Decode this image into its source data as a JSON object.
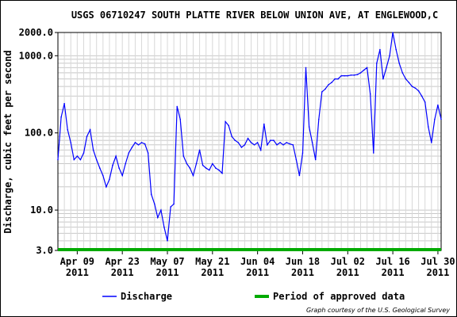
{
  "chart_data": {
    "type": "line",
    "title": "USGS 06710247 SOUTH PLATTE RIVER BELOW UNION AVE, AT ENGLEWOOD,C",
    "ylabel": "Discharge, cubic feet per second",
    "xlabel": "",
    "y_scale": "log",
    "ylim": [
      3,
      2000
    ],
    "xlim": [
      "2011-04-03",
      "2011-07-31"
    ],
    "grid": true,
    "y_ticks": [
      "2000.0",
      "1000.0",
      "100.0",
      "10.0",
      "3.0"
    ],
    "x_ticks": [
      {
        "date": "2011-04-09",
        "line1": "Apr 09",
        "line2": "2011"
      },
      {
        "date": "2011-04-23",
        "line1": "Apr 23",
        "line2": "2011"
      },
      {
        "date": "2011-05-07",
        "line1": "May 07",
        "line2": "2011"
      },
      {
        "date": "2011-05-21",
        "line1": "May 21",
        "line2": "2011"
      },
      {
        "date": "2011-06-04",
        "line1": "Jun 04",
        "line2": "2011"
      },
      {
        "date": "2011-06-18",
        "line1": "Jun 18",
        "line2": "2011"
      },
      {
        "date": "2011-07-02",
        "line1": "Jul 02",
        "line2": "2011"
      },
      {
        "date": "2011-07-16",
        "line1": "Jul 16",
        "line2": "2011"
      },
      {
        "date": "2011-07-30",
        "line1": "Jul 30",
        "line2": "2011"
      }
    ],
    "series": [
      {
        "name": "Discharge",
        "color": "#0000ff",
        "points": [
          [
            "2011-04-03",
            45
          ],
          [
            "2011-04-04",
            160
          ],
          [
            "2011-04-05",
            240
          ],
          [
            "2011-04-06",
            110
          ],
          [
            "2011-04-07",
            75
          ],
          [
            "2011-04-08",
            45
          ],
          [
            "2011-04-09",
            50
          ],
          [
            "2011-04-10",
            45
          ],
          [
            "2011-04-11",
            55
          ],
          [
            "2011-04-12",
            90
          ],
          [
            "2011-04-13",
            110
          ],
          [
            "2011-04-14",
            60
          ],
          [
            "2011-04-15",
            45
          ],
          [
            "2011-04-16",
            35
          ],
          [
            "2011-04-17",
            28
          ],
          [
            "2011-04-18",
            20
          ],
          [
            "2011-04-19",
            25
          ],
          [
            "2011-04-20",
            38
          ],
          [
            "2011-04-21",
            50
          ],
          [
            "2011-04-22",
            35
          ],
          [
            "2011-04-23",
            28
          ],
          [
            "2011-04-24",
            40
          ],
          [
            "2011-04-25",
            55
          ],
          [
            "2011-04-26",
            65
          ],
          [
            "2011-04-27",
            75
          ],
          [
            "2011-04-28",
            70
          ],
          [
            "2011-04-29",
            75
          ],
          [
            "2011-04-30",
            72
          ],
          [
            "2011-05-01",
            55
          ],
          [
            "2011-05-02",
            16
          ],
          [
            "2011-05-03",
            12
          ],
          [
            "2011-05-04",
            8
          ],
          [
            "2011-05-05",
            10
          ],
          [
            "2011-05-06",
            6
          ],
          [
            "2011-05-07",
            4
          ],
          [
            "2011-05-08",
            11
          ],
          [
            "2011-05-09",
            12
          ],
          [
            "2011-05-10",
            220
          ],
          [
            "2011-05-11",
            150
          ],
          [
            "2011-05-12",
            50
          ],
          [
            "2011-05-13",
            40
          ],
          [
            "2011-05-14",
            35
          ],
          [
            "2011-05-15",
            28
          ],
          [
            "2011-05-16",
            40
          ],
          [
            "2011-05-17",
            60
          ],
          [
            "2011-05-18",
            38
          ],
          [
            "2011-05-19",
            35
          ],
          [
            "2011-05-20",
            33
          ],
          [
            "2011-05-21",
            40
          ],
          [
            "2011-05-22",
            35
          ],
          [
            "2011-05-23",
            33
          ],
          [
            "2011-05-24",
            30
          ],
          [
            "2011-05-25",
            140
          ],
          [
            "2011-05-26",
            125
          ],
          [
            "2011-05-27",
            90
          ],
          [
            "2011-05-28",
            80
          ],
          [
            "2011-05-29",
            75
          ],
          [
            "2011-05-30",
            65
          ],
          [
            "2011-05-31",
            70
          ],
          [
            "2011-06-01",
            85
          ],
          [
            "2011-06-02",
            75
          ],
          [
            "2011-06-03",
            70
          ],
          [
            "2011-06-04",
            75
          ],
          [
            "2011-06-05",
            60
          ],
          [
            "2011-06-06",
            130
          ],
          [
            "2011-06-07",
            70
          ],
          [
            "2011-06-08",
            80
          ],
          [
            "2011-06-09",
            80
          ],
          [
            "2011-06-10",
            70
          ],
          [
            "2011-06-11",
            75
          ],
          [
            "2011-06-12",
            70
          ],
          [
            "2011-06-13",
            75
          ],
          [
            "2011-06-14",
            72
          ],
          [
            "2011-06-15",
            70
          ],
          [
            "2011-06-16",
            45
          ],
          [
            "2011-06-17",
            28
          ],
          [
            "2011-06-18",
            55
          ],
          [
            "2011-06-19",
            700
          ],
          [
            "2011-06-20",
            120
          ],
          [
            "2011-06-21",
            75
          ],
          [
            "2011-06-22",
            45
          ],
          [
            "2011-06-23",
            150
          ],
          [
            "2011-06-24",
            340
          ],
          [
            "2011-06-25",
            370
          ],
          [
            "2011-06-26",
            420
          ],
          [
            "2011-06-27",
            450
          ],
          [
            "2011-06-28",
            500
          ],
          [
            "2011-06-29",
            500
          ],
          [
            "2011-06-30",
            550
          ],
          [
            "2011-07-01",
            550
          ],
          [
            "2011-07-02",
            550
          ],
          [
            "2011-07-03",
            560
          ],
          [
            "2011-07-04",
            560
          ],
          [
            "2011-07-05",
            570
          ],
          [
            "2011-07-06",
            600
          ],
          [
            "2011-07-07",
            650
          ],
          [
            "2011-07-08",
            700
          ],
          [
            "2011-07-09",
            320
          ],
          [
            "2011-07-10",
            55
          ],
          [
            "2011-07-11",
            800
          ],
          [
            "2011-07-12",
            1200
          ],
          [
            "2011-07-13",
            500
          ],
          [
            "2011-07-14",
            700
          ],
          [
            "2011-07-15",
            1000
          ],
          [
            "2011-07-16",
            2000
          ],
          [
            "2011-07-17",
            1200
          ],
          [
            "2011-07-18",
            800
          ],
          [
            "2011-07-19",
            600
          ],
          [
            "2011-07-20",
            500
          ],
          [
            "2011-07-21",
            450
          ],
          [
            "2011-07-22",
            400
          ],
          [
            "2011-07-23",
            380
          ],
          [
            "2011-07-24",
            350
          ],
          [
            "2011-07-25",
            300
          ],
          [
            "2011-07-26",
            250
          ],
          [
            "2011-07-27",
            120
          ],
          [
            "2011-07-28",
            75
          ],
          [
            "2011-07-29",
            150
          ],
          [
            "2011-07-30",
            230
          ],
          [
            "2011-07-31",
            150
          ]
        ]
      }
    ],
    "approved_period": {
      "start": "2011-04-03",
      "end": "2011-07-31",
      "color": "#00aa00"
    },
    "legend": [
      {
        "label": "Discharge",
        "color": "#0000ff",
        "style": "line"
      },
      {
        "label": "Period of approved data",
        "color": "#00aa00",
        "style": "thick"
      }
    ],
    "legend_position": "bottom",
    "credit": "Graph courtesy of the U.S. Geological Survey"
  }
}
